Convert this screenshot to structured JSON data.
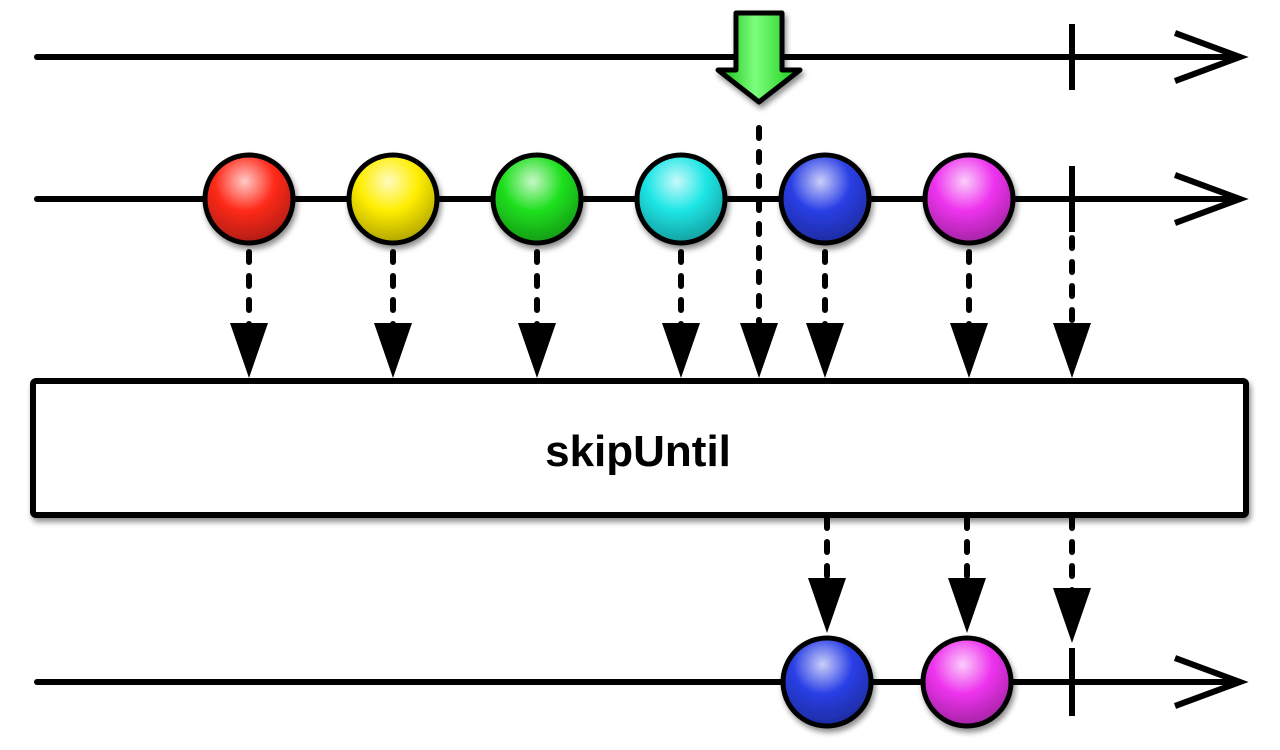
{
  "operator": {
    "label": "skipUntil"
  },
  "colors": {
    "line": "#000000",
    "box_fill": "#ffffff",
    "trigger_arrow": "#22dd22"
  },
  "timelines": {
    "notifier": {
      "name": "notifier-timeline",
      "items": [],
      "emits_trigger": true,
      "completes": true
    },
    "source": {
      "name": "source-timeline",
      "items": [
        {
          "id": "red",
          "color": "#ff2a1a"
        },
        {
          "id": "yellow",
          "color": "#ffee00"
        },
        {
          "id": "green",
          "color": "#1ee01e"
        },
        {
          "id": "cyan",
          "color": "#1ee6e6"
        },
        {
          "id": "blue",
          "color": "#2a3fe6"
        },
        {
          "id": "magenta",
          "color": "#ee33ee"
        }
      ],
      "completes": true
    },
    "result": {
      "name": "result-timeline",
      "items": [
        {
          "id": "blue",
          "color": "#2a3fe6"
        },
        {
          "id": "magenta",
          "color": "#ee33ee"
        }
      ],
      "completes": true
    }
  }
}
